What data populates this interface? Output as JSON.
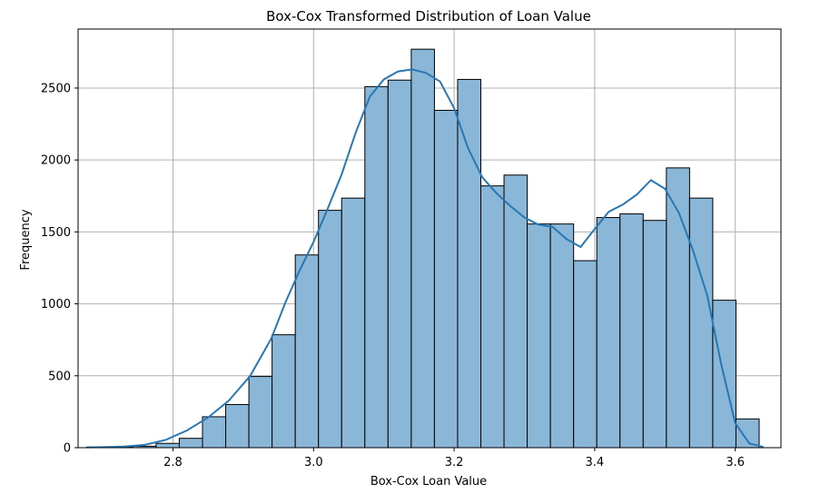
{
  "chart_data": {
    "type": "bar",
    "title": "Box-Cox Transformed Distribution of Loan Value",
    "xlabel": "Box-Cox Loan Value",
    "ylabel": "Frequency",
    "xlim": [
      2.665,
      3.665
    ],
    "ylim": [
      0,
      2910
    ],
    "grid": true,
    "xticks": [
      2.8,
      3.0,
      3.2,
      3.4,
      3.6
    ],
    "xtick_labels": [
      "2.8",
      "3.0",
      "3.2",
      "3.4",
      "3.6"
    ],
    "yticks": [
      0,
      500,
      1000,
      1500,
      2000,
      2500
    ],
    "ytick_labels": [
      "0",
      "500",
      "1000",
      "1500",
      "2000",
      "2500"
    ],
    "bin_edges": [
      2.677,
      2.71,
      2.743,
      2.776,
      2.809,
      2.842,
      2.875,
      2.908,
      2.941,
      2.974,
      3.007,
      3.04,
      3.073,
      3.106,
      3.139,
      3.172,
      3.205,
      3.238,
      3.271,
      3.304,
      3.337,
      3.37,
      3.403,
      3.436,
      3.469,
      3.502,
      3.535,
      3.568,
      3.601,
      3.634
    ],
    "counts": [
      3,
      5,
      10,
      30,
      65,
      215,
      300,
      495,
      785,
      1340,
      1650,
      1735,
      2510,
      2555,
      2770,
      2345,
      2560,
      1820,
      1895,
      1555,
      1555,
      1300,
      1600,
      1625,
      1580,
      1945,
      1735,
      1025,
      200,
      10
    ],
    "bar_color": "#8ab6d8",
    "bar_edge_color": "#000000",
    "kde": {
      "color": "#2878b5",
      "x": [
        2.677,
        2.7,
        2.73,
        2.76,
        2.79,
        2.82,
        2.85,
        2.88,
        2.91,
        2.94,
        2.96,
        2.98,
        3.0,
        3.02,
        3.04,
        3.06,
        3.08,
        3.1,
        3.12,
        3.14,
        3.16,
        3.18,
        3.2,
        3.22,
        3.24,
        3.26,
        3.28,
        3.3,
        3.32,
        3.34,
        3.36,
        3.38,
        3.4,
        3.42,
        3.44,
        3.46,
        3.48,
        3.5,
        3.52,
        3.54,
        3.56,
        3.58,
        3.6,
        3.62,
        3.64
      ],
      "y": [
        2,
        4,
        8,
        20,
        55,
        120,
        210,
        330,
        500,
        760,
        1010,
        1230,
        1430,
        1660,
        1900,
        2190,
        2440,
        2560,
        2615,
        2630,
        2605,
        2545,
        2360,
        2080,
        1880,
        1770,
        1680,
        1600,
        1550,
        1535,
        1450,
        1395,
        1520,
        1640,
        1690,
        1760,
        1860,
        1800,
        1630,
        1370,
        1060,
        580,
        170,
        30,
        5
      ]
    }
  }
}
